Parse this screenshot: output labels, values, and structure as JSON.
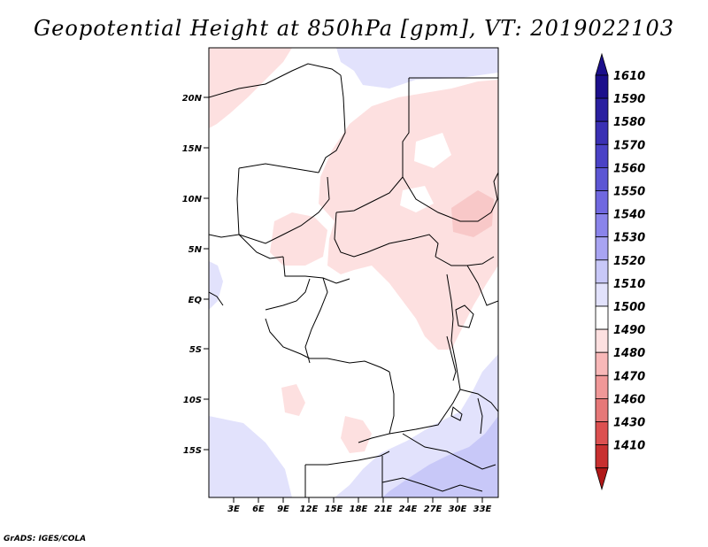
{
  "title": "Geopotential Height at 850hPa [gpm], VT: 2019022103",
  "credit": "GrADS: IGES/COLA",
  "map": {
    "lat_labels": [
      "20N",
      "15N",
      "10N",
      "5N",
      "EQ",
      "5S",
      "10S",
      "15S"
    ],
    "lon_labels": [
      "3E",
      "6E",
      "9E",
      "12E",
      "15E",
      "18E",
      "21E",
      "24E",
      "27E",
      "30E",
      "33E"
    ]
  },
  "colorbar": {
    "levels": [
      "1610",
      "1590",
      "1580",
      "1570",
      "1560",
      "1550",
      "1540",
      "1530",
      "1520",
      "1510",
      "1500",
      "1490",
      "1480",
      "1470",
      "1460",
      "1430",
      "1410"
    ],
    "colors": [
      "#1c0f8c",
      "#2a1fa0",
      "#3a30b4",
      "#4a42c6",
      "#5c56d4",
      "#7068e0",
      "#8a84ea",
      "#a8a4f2",
      "#c8c8f8",
      "#e2e2fc",
      "#ffffff",
      "#fde0e0",
      "#f8b8b8",
      "#f09898",
      "#e67878",
      "#dc5050",
      "#c83030",
      "#b01818"
    ],
    "top_color": "#1c0f8c",
    "bottom_color": "#b01818"
  }
}
